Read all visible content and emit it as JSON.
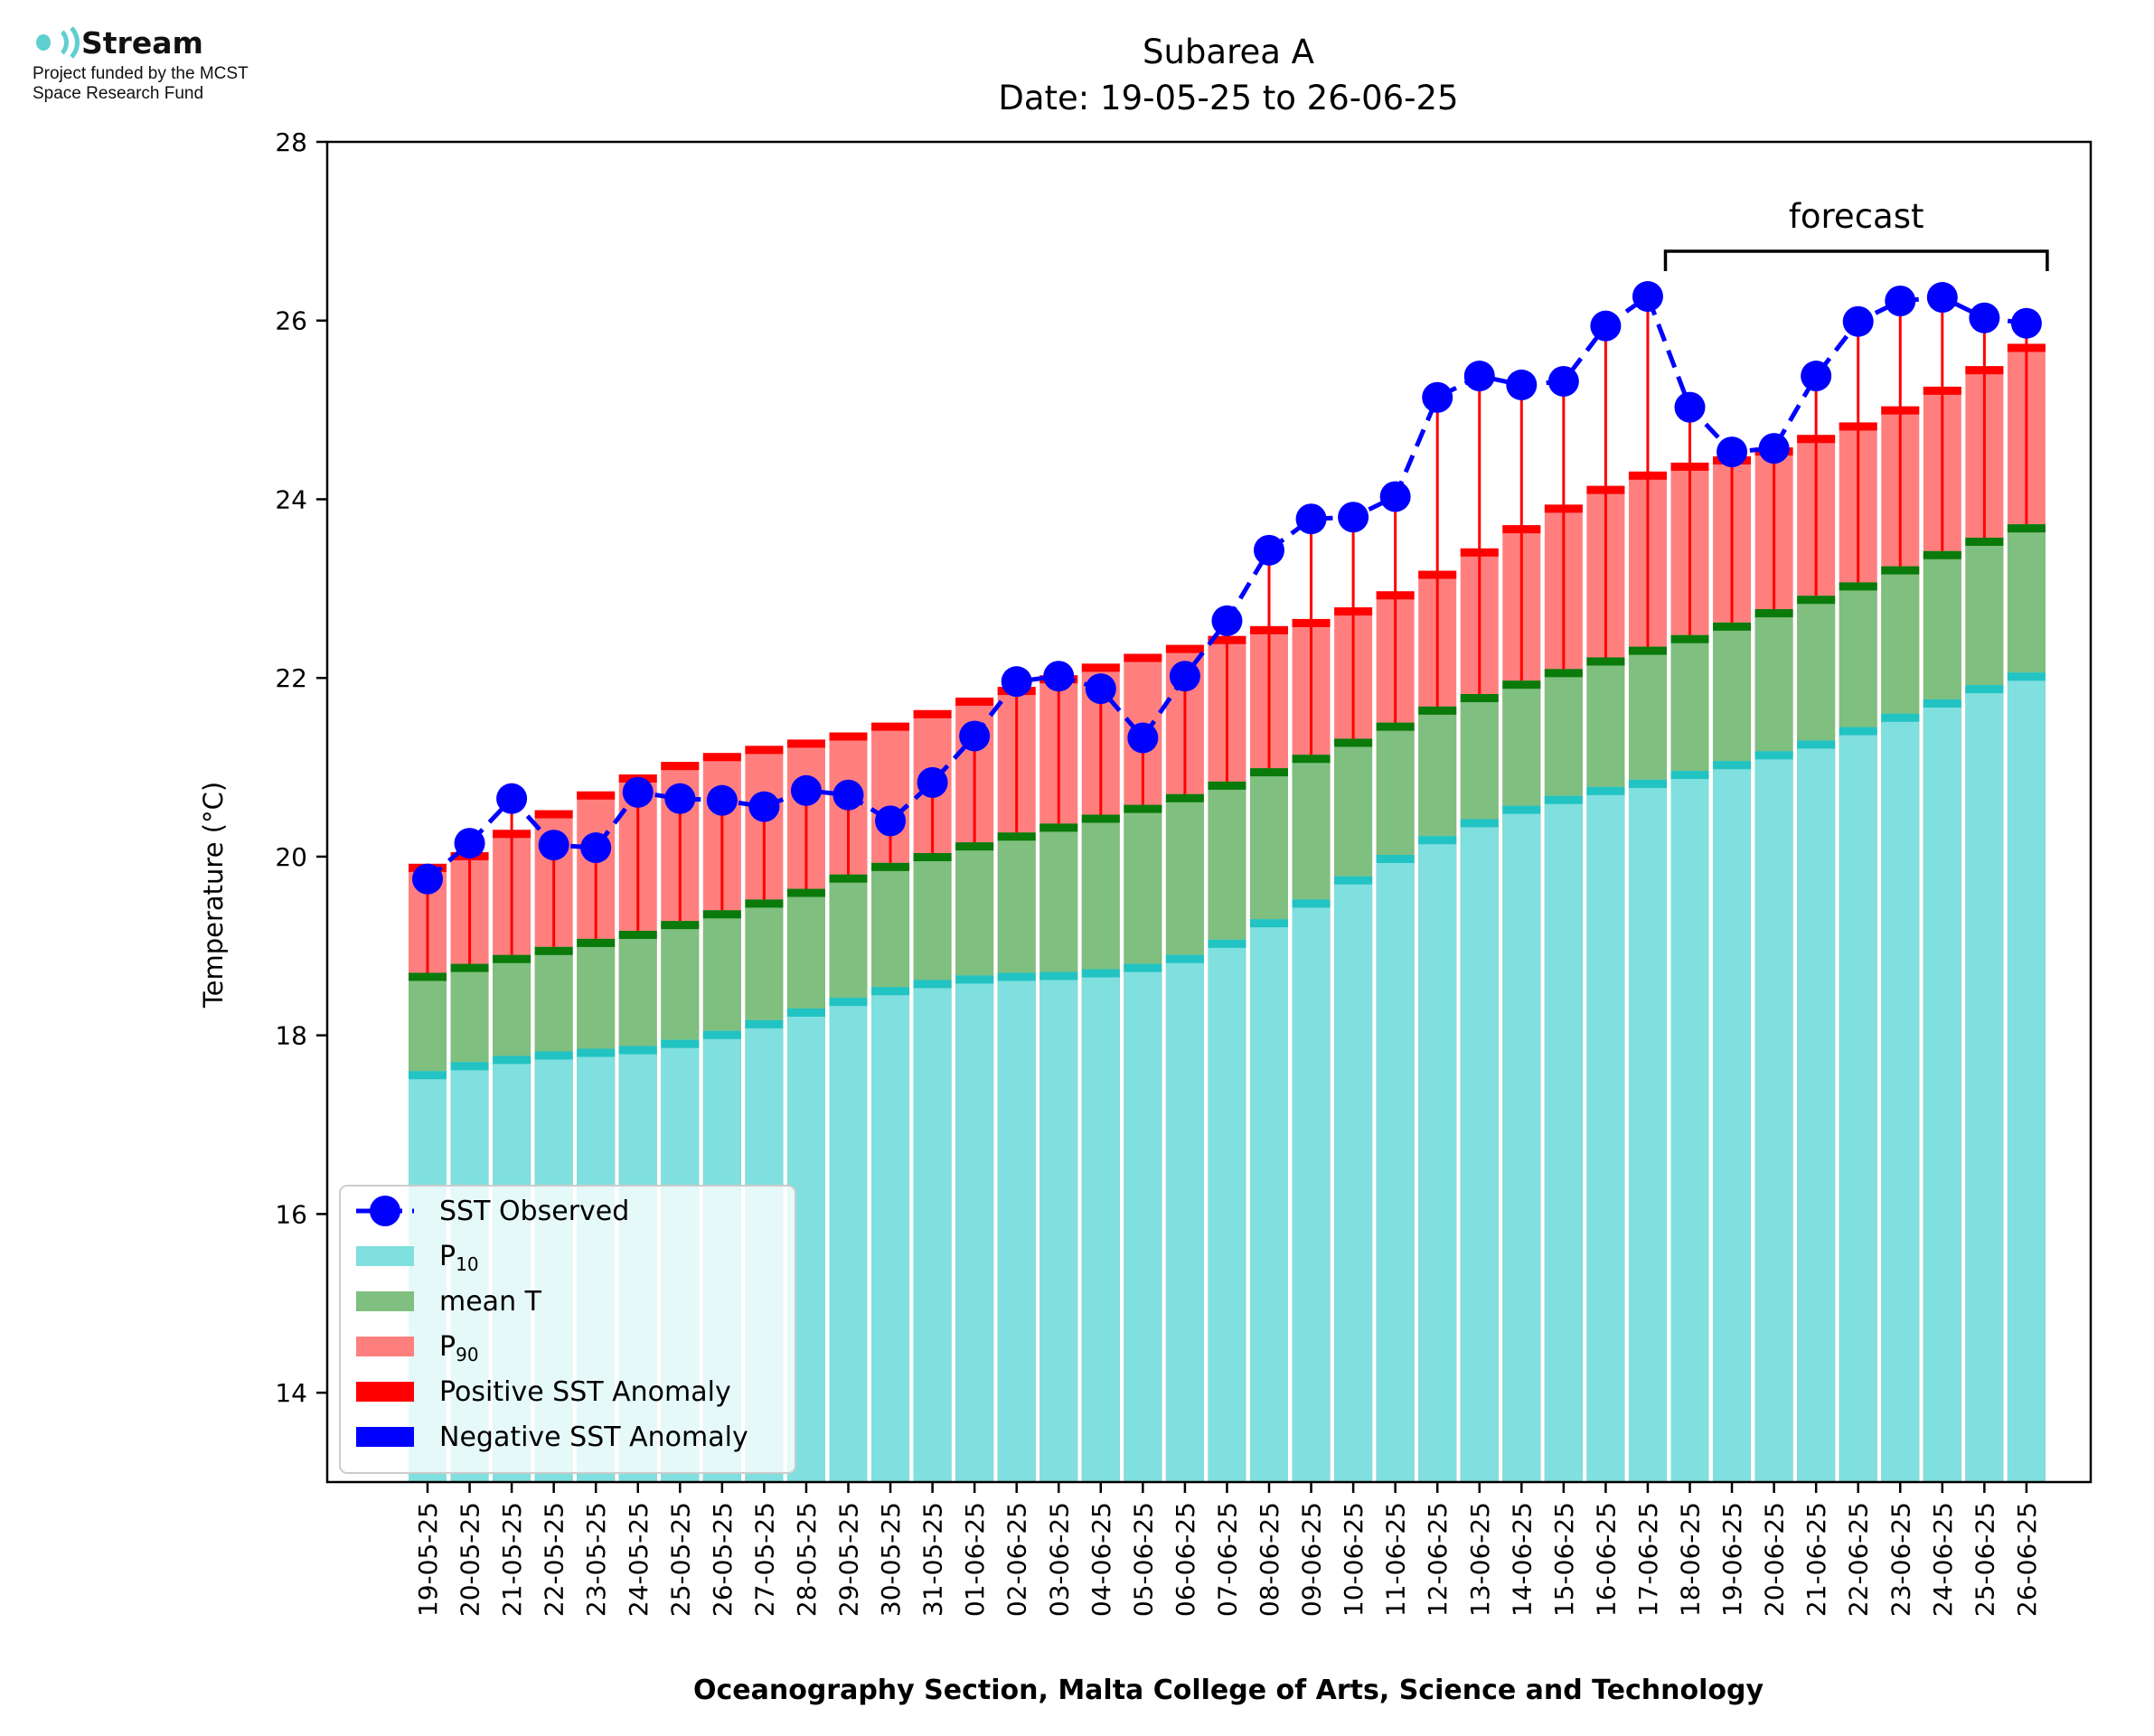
{
  "logo": {
    "icon": "stream-wave-icon",
    "name": "Stream",
    "subtitle_line1": "Project funded by the MCST",
    "subtitle_line2": "Space Research Fund"
  },
  "colors": {
    "p10": "#80dfdf",
    "p10_edge": "#22c3c3",
    "mean": "#7fbf7f",
    "mean_edge": "#0a7a0a",
    "p90": "#ff7f7f",
    "p90_edge": "#ff0000",
    "observed": "#0000ff",
    "anomaly_pos": "#ff0000",
    "anomaly_neg": "#0000ff"
  },
  "chart_data": {
    "type": "bar",
    "title": "Subarea A",
    "subtitle": "Date: 19-05-25 to 26-06-25",
    "xlabel": "Oceanography Section, Malta College of Arts, Science and Technology",
    "ylabel": "Temperature (°C)",
    "ylim": [
      13,
      28
    ],
    "yticks": [
      14,
      16,
      18,
      20,
      22,
      24,
      26,
      28
    ],
    "grid": false,
    "legend_position": "bottom-left",
    "annotation": {
      "text": "forecast",
      "from": "18-06-25",
      "to": "26-06-25"
    },
    "categories": [
      "19-05-25",
      "20-05-25",
      "21-05-25",
      "22-05-25",
      "23-05-25",
      "24-05-25",
      "25-05-25",
      "26-05-25",
      "27-05-25",
      "28-05-25",
      "29-05-25",
      "30-05-25",
      "31-05-25",
      "01-06-25",
      "02-06-25",
      "03-06-25",
      "04-06-25",
      "05-06-25",
      "06-06-25",
      "07-06-25",
      "08-06-25",
      "09-06-25",
      "10-06-25",
      "11-06-25",
      "12-06-25",
      "13-06-25",
      "14-06-25",
      "15-06-25",
      "16-06-25",
      "17-06-25",
      "18-06-25",
      "19-06-25",
      "20-06-25",
      "21-06-25",
      "22-06-25",
      "23-06-25",
      "24-06-25",
      "25-06-25",
      "26-06-25"
    ],
    "series": [
      {
        "name": "P10",
        "legend_label": "P",
        "legend_sub": "10",
        "values": [
          17.6,
          17.7,
          17.77,
          17.82,
          17.85,
          17.88,
          17.95,
          18.05,
          18.17,
          18.3,
          18.42,
          18.54,
          18.62,
          18.67,
          18.7,
          18.71,
          18.74,
          18.8,
          18.9,
          19.07,
          19.3,
          19.52,
          19.78,
          20.02,
          20.23,
          20.42,
          20.57,
          20.68,
          20.78,
          20.86,
          20.96,
          21.07,
          21.18,
          21.3,
          21.45,
          21.6,
          21.76,
          21.92,
          22.06
        ]
      },
      {
        "name": "mean T",
        "values": [
          18.7,
          18.8,
          18.9,
          18.99,
          19.08,
          19.17,
          19.28,
          19.4,
          19.52,
          19.64,
          19.8,
          19.93,
          20.04,
          20.16,
          20.27,
          20.37,
          20.47,
          20.58,
          20.7,
          20.84,
          20.99,
          21.14,
          21.32,
          21.5,
          21.68,
          21.82,
          21.97,
          22.1,
          22.23,
          22.35,
          22.48,
          22.62,
          22.77,
          22.92,
          23.07,
          23.25,
          23.42,
          23.57,
          23.72
        ]
      },
      {
        "name": "P90",
        "legend_label": "P",
        "legend_sub": "90",
        "values": [
          19.92,
          20.05,
          20.3,
          20.52,
          20.73,
          20.92,
          21.06,
          21.16,
          21.24,
          21.31,
          21.39,
          21.5,
          21.64,
          21.78,
          21.9,
          22.03,
          22.16,
          22.27,
          22.37,
          22.47,
          22.58,
          22.66,
          22.79,
          22.97,
          23.2,
          23.45,
          23.71,
          23.94,
          24.15,
          24.31,
          24.41,
          24.48,
          24.58,
          24.72,
          24.86,
          25.04,
          25.26,
          25.49,
          25.74
        ]
      },
      {
        "name": "SST Observed",
        "values": [
          19.75,
          20.15,
          20.65,
          20.13,
          20.1,
          20.72,
          20.65,
          20.63,
          20.56,
          20.74,
          20.69,
          20.4,
          20.83,
          21.35,
          21.96,
          22.02,
          21.88,
          21.33,
          22.02,
          22.64,
          23.43,
          23.78,
          23.8,
          24.03,
          25.14,
          25.38,
          25.28,
          25.32,
          25.94,
          26.27,
          25.03,
          24.53,
          24.57,
          25.38,
          25.99,
          26.22,
          26.26,
          26.03,
          25.97
        ]
      }
    ],
    "legend": [
      {
        "label": "SST Observed"
      },
      {
        "label": "P",
        "sub": "10"
      },
      {
        "label": "mean T"
      },
      {
        "label": "P",
        "sub": "90"
      },
      {
        "label": "Positive SST Anomaly"
      },
      {
        "label": "Negative SST Anomaly"
      }
    ]
  }
}
